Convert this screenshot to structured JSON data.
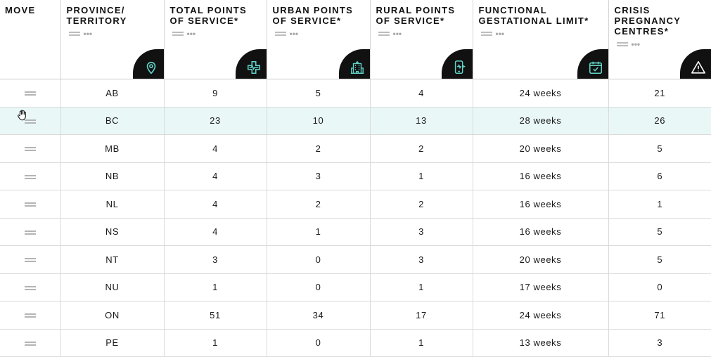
{
  "columns": [
    {
      "label": "MOVE",
      "icon": null
    },
    {
      "label": "PROVINCE/ TERRITORY",
      "icon": "map-pin-icon"
    },
    {
      "label": "TOTAL POINTS OF SERVICE*",
      "icon": "medical-cross-icon"
    },
    {
      "label": "URBAN POINTS OF SERVICE*",
      "icon": "hospital-building-icon"
    },
    {
      "label": "RURAL POINTS OF SERVICE*",
      "icon": "telehealth-phone-icon"
    },
    {
      "label": "FUNCTIONAL GESTATIONAL LIMIT*",
      "icon": "calendar-check-icon"
    },
    {
      "label": "CRISIS PREGNANCY CENTRES*",
      "icon": "warning-triangle-icon"
    }
  ],
  "rows": [
    {
      "province": "AB",
      "total": "9",
      "urban": "5",
      "rural": "4",
      "limit": "24 weeks",
      "crisis": "21"
    },
    {
      "province": "BC",
      "total": "23",
      "urban": "10",
      "rural": "13",
      "limit": "28 weeks",
      "crisis": "26"
    },
    {
      "province": "MB",
      "total": "4",
      "urban": "2",
      "rural": "2",
      "limit": "20 weeks",
      "crisis": "5"
    },
    {
      "province": "NB",
      "total": "4",
      "urban": "3",
      "rural": "1",
      "limit": "16 weeks",
      "crisis": "6"
    },
    {
      "province": "NL",
      "total": "4",
      "urban": "2",
      "rural": "2",
      "limit": "16 weeks",
      "crisis": "1"
    },
    {
      "province": "NS",
      "total": "4",
      "urban": "1",
      "rural": "3",
      "limit": "16 weeks",
      "crisis": "5"
    },
    {
      "province": "NT",
      "total": "3",
      "urban": "0",
      "rural": "3",
      "limit": "20 weeks",
      "crisis": "5"
    },
    {
      "province": "NU",
      "total": "1",
      "urban": "0",
      "rural": "1",
      "limit": "17 weeks",
      "crisis": "0"
    },
    {
      "province": "ON",
      "total": "51",
      "urban": "34",
      "rural": "17",
      "limit": "24 weeks",
      "crisis": "71"
    },
    {
      "province": "PE",
      "total": "1",
      "urban": "0",
      "rural": "1",
      "limit": "13 weeks",
      "crisis": "3"
    }
  ],
  "highlighted_row": "BC",
  "colors": {
    "accent": "#5fd3c8",
    "highlight": "#eaf7f7",
    "badge": "#111111"
  }
}
